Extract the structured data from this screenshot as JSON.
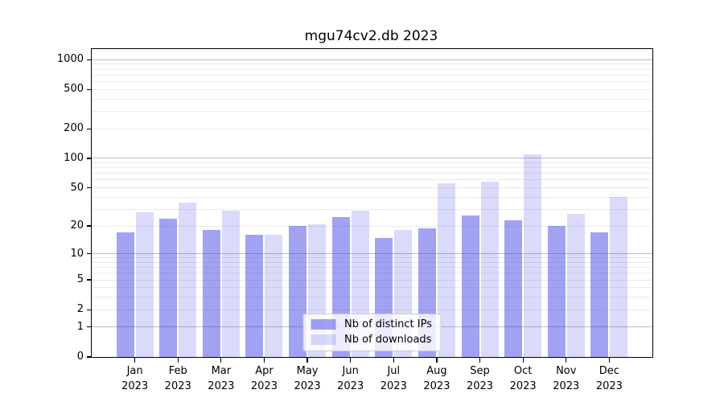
{
  "title": "mgu74cv2.db 2023",
  "chart_data": {
    "type": "bar",
    "title": "mgu74cv2.db 2023",
    "months": [
      "Jan",
      "Feb",
      "Mar",
      "Apr",
      "May",
      "Jun",
      "Jul",
      "Aug",
      "Sep",
      "Oct",
      "Nov",
      "Dec"
    ],
    "year": "2023",
    "series": [
      {
        "name": "Nb of distinct IPs",
        "color": "rgba(69,69,230,0.5)",
        "values": [
          17,
          24,
          18,
          16,
          20,
          25,
          15,
          19,
          26,
          23,
          20,
          17
        ]
      },
      {
        "name": "Nb of downloads",
        "color": "rgba(69,69,230,0.2)",
        "values": [
          28,
          35,
          29,
          16,
          21,
          29,
          18,
          56,
          58,
          110,
          27,
          40
        ]
      }
    ],
    "scale": "log1p",
    "ylim": [
      0,
      1280
    ],
    "y_ticks": [
      0,
      1,
      2,
      5,
      10,
      20,
      50,
      100,
      200,
      500,
      1000
    ],
    "y_tick_labels": [
      "0",
      "1",
      "2",
      "5",
      "10",
      "20",
      "50",
      "100",
      "200",
      "500",
      "1000"
    ],
    "gridlines_major": [
      1,
      10,
      100,
      1000
    ],
    "gridlines_minor": [
      2,
      3,
      4,
      5,
      6,
      7,
      8,
      9,
      20,
      30,
      40,
      50,
      60,
      70,
      80,
      90,
      200,
      300,
      400,
      500,
      600,
      700,
      800,
      900
    ],
    "grid": true,
    "legend_position": "lower center",
    "xlabel": "",
    "ylabel": ""
  },
  "colors": {
    "bar_distinct_ips": "rgba(69,69,230,0.5)",
    "bar_downloads": "rgba(69,69,230,0.2)",
    "grid_major": "#bdbdbd",
    "grid_minor": "#eaeaea",
    "spine": "#000000",
    "background": "#ffffff"
  }
}
